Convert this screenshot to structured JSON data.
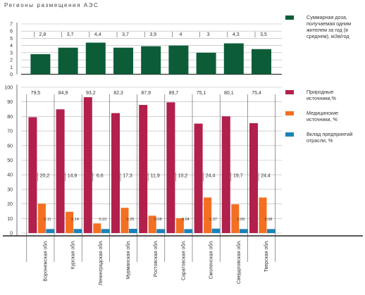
{
  "page": {
    "title": "Регионы размещения АЭС"
  },
  "chart_data": [
    {
      "type": "bar",
      "categories": [
        "Воронежская обл.",
        "Курская обл.",
        "Ленинградская обл.",
        "Мурманская обл.",
        "Ростовская обл.",
        "Саратовская обл.",
        "Смоленская обл.",
        "Свердловская обл.",
        "Тверская обл."
      ],
      "series": [
        {
          "name": "Суммарная доза, получаемая одним жителем за год (в среднем), мЗв/год",
          "values": [
            2.8,
            3.7,
            4.4,
            3.7,
            3.9,
            4,
            3,
            4.3,
            3.5
          ],
          "value_labels": [
            "2,8",
            "3,7",
            "4,4",
            "3,7",
            "3,9",
            "4",
            "3",
            "4,3",
            "3,5"
          ]
        }
      ],
      "yticks": [
        "0",
        "1",
        "2",
        "3",
        "4",
        "5",
        "6",
        "7"
      ],
      "ylim": [
        0,
        7
      ],
      "grid": true,
      "legend_position": "right",
      "colors": [
        "#0d5c38"
      ]
    },
    {
      "type": "bar",
      "categories": [
        "Воронежская обл.",
        "Курская обл.",
        "Ленинградская обл.",
        "Мурманская обл.",
        "Ростовская обл.",
        "Саратовская обл.",
        "Смоленская обл.",
        "Свердловская обл.",
        "Тверская обл."
      ],
      "series": [
        {
          "name": "Природные источники,%",
          "values": [
            79.5,
            84.9,
            93.2,
            82.3,
            87.9,
            89.7,
            75.1,
            80.1,
            75.4
          ],
          "value_labels": [
            "79,5",
            "84,9",
            "93,2",
            "82,3",
            "87,9",
            "89,7",
            "75,1",
            "80,1",
            "75,4"
          ]
        },
        {
          "name": "Медицинские источники, %",
          "values": [
            20.2,
            14.6,
            6.6,
            17.3,
            11.9,
            10.2,
            24.4,
            19.7,
            24.4
          ],
          "value_labels": [
            "20,2",
            "14,6",
            "6,6",
            "17,3",
            "11,9",
            "10,2",
            "24,4",
            "19,7",
            "24,4"
          ]
        },
        {
          "name": "Вклад предприятий отрасли, %",
          "values": [
            0.11,
            0.14,
            0.1,
            0.26,
            0.08,
            0.04,
            0.37,
            0.09,
            0.08
          ],
          "value_labels": [
            "0,11",
            "0,14",
            "0,10",
            "0,26",
            "0,08",
            "0,04",
            "0,37",
            "0,09",
            "0,08"
          ]
        }
      ],
      "yticks": [
        "0",
        "10",
        "20",
        "30",
        "40",
        "50",
        "60",
        "70",
        "80",
        "90",
        "100"
      ],
      "ylim": [
        0,
        100
      ],
      "grid": true,
      "legend_position": "right",
      "colors": [
        "#b2204c",
        "#f36f21",
        "#1a82b8"
      ]
    }
  ]
}
